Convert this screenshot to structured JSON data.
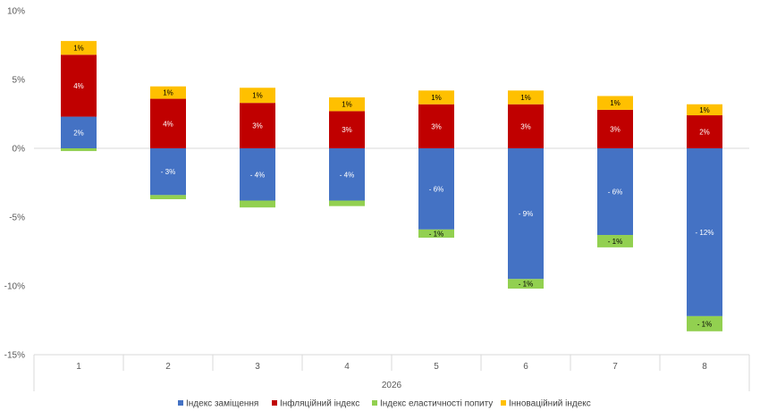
{
  "chart_data": {
    "type": "bar",
    "stacked": true,
    "categories": [
      "1",
      "2",
      "3",
      "4",
      "5",
      "6",
      "7",
      "8"
    ],
    "group_label": "2026",
    "ylim": [
      -15,
      10
    ],
    "yticks": [
      10,
      5,
      0,
      -5,
      -10,
      -15
    ],
    "ytick_labels": [
      "10%",
      "5%",
      "0%",
      "-5%",
      "-10%",
      "-15%"
    ],
    "legend_position": "bottom",
    "series": [
      {
        "name": "Індекс заміщення",
        "color": "#4472C4",
        "label_color": "#FFFFFF",
        "values": [
          2.3,
          -3.4,
          -3.8,
          -3.8,
          -5.9,
          -9.5,
          -6.3,
          -12.2
        ],
        "labels": [
          "2%",
          "- 3%",
          "- 4%",
          "- 4%",
          "- 6%",
          "- 9%",
          "- 6%",
          "- 12%"
        ]
      },
      {
        "name": "Інфляційний індекс",
        "color": "#C00000",
        "label_color": "#FFFFFF",
        "values": [
          4.5,
          3.6,
          3.3,
          2.7,
          3.2,
          3.2,
          2.8,
          2.4
        ],
        "labels": [
          "4%",
          "4%",
          "3%",
          "3%",
          "3%",
          "3%",
          "3%",
          "2%"
        ]
      },
      {
        "name": "Індекс еластичності попиту",
        "color": "#92D050",
        "label_color": "#000000",
        "values": [
          -0.2,
          -0.3,
          -0.5,
          -0.4,
          -0.6,
          -0.7,
          -0.9,
          -1.1
        ],
        "labels": [
          "",
          "",
          "",
          "",
          "- 1%",
          "- 1%",
          "- 1%",
          "- 1%"
        ]
      },
      {
        "name": "Інноваційний індекс",
        "color": "#FFC000",
        "label_color": "#000000",
        "values": [
          1.0,
          0.9,
          1.1,
          1.0,
          1.0,
          1.0,
          1.0,
          0.8
        ],
        "labels": [
          "1%",
          "1%",
          "1%",
          "1%",
          "1%",
          "1%",
          "1%",
          "1%"
        ]
      }
    ]
  }
}
